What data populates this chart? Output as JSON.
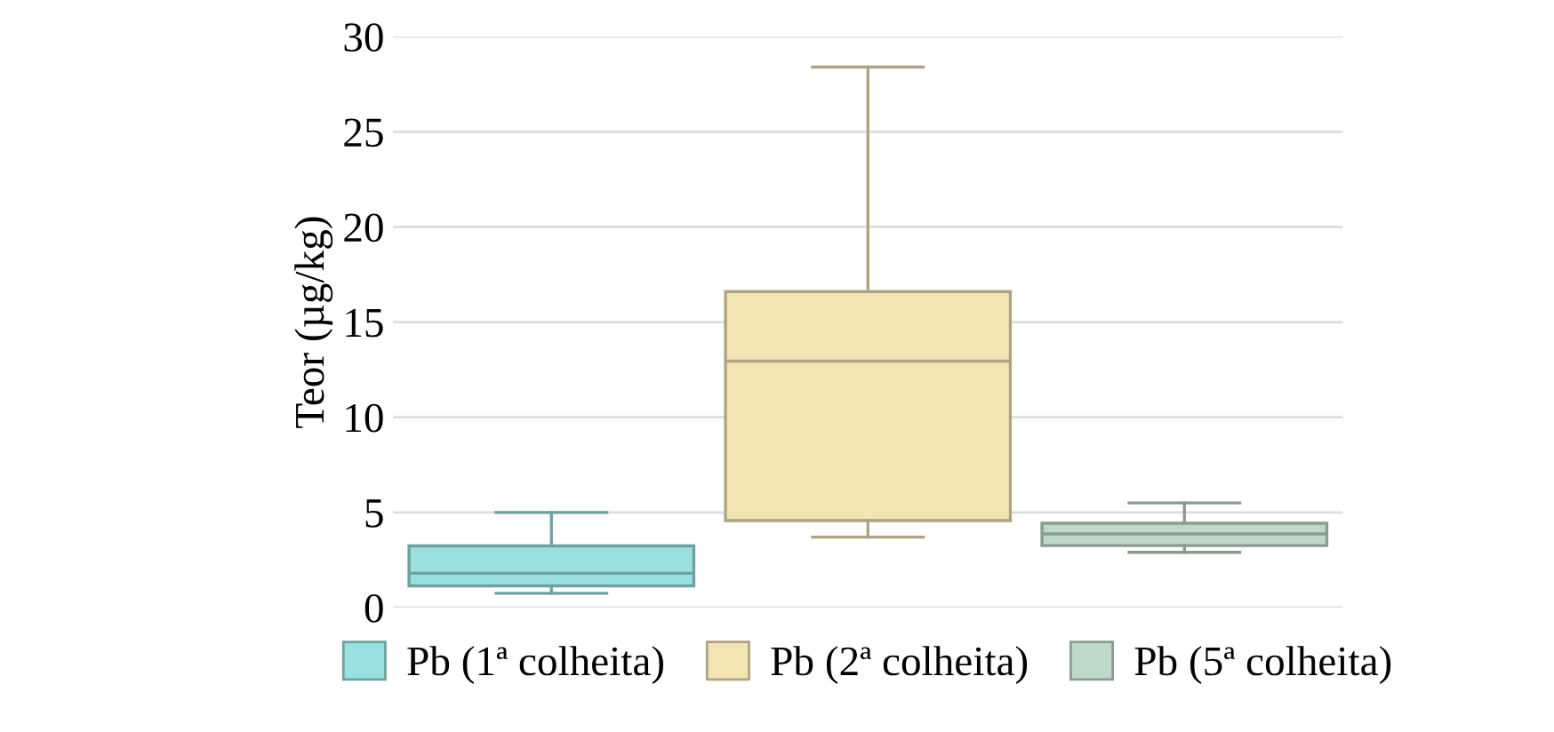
{
  "chart_data": {
    "type": "box",
    "ylabel": "Teor (µg/kg)",
    "categories": [
      null,
      null,
      null
    ],
    "ylim": [
      0,
      30
    ],
    "yticks": [
      0,
      5,
      10,
      15,
      20,
      25,
      30
    ],
    "grid": "y",
    "legend": "bottom",
    "series": [
      {
        "name": "Pb (1ª colheita)",
        "color": "#9ae0e0",
        "boxes": [
          {
            "low": 0.75,
            "q1": 1.14,
            "median": 1.8,
            "q3": 3.24,
            "high": 5.0
          },
          null,
          null
        ]
      },
      {
        "name": "Pb (2ª colheita)",
        "color": "#f3e4b3",
        "boxes": [
          null,
          {
            "low": 3.7,
            "q1": 4.57,
            "median": 12.95,
            "q3": 16.6,
            "high": 28.4
          },
          null
        ]
      },
      {
        "name": "Pb (5ª colheita)",
        "color": "#bfd9c8",
        "boxes": [
          null,
          null,
          {
            "low": 2.9,
            "q1": 3.26,
            "median": 3.87,
            "q3": 4.43,
            "high": 5.5
          }
        ]
      }
    ]
  }
}
